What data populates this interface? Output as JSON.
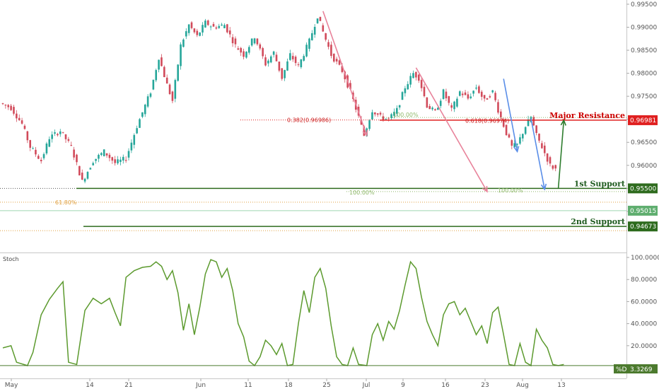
{
  "chart_data": [
    {
      "type": "candlestick",
      "panel": "price",
      "ylim": [
        0.9443,
        0.9953
      ],
      "yticks": [
        "0.95000",
        "0.95500",
        "0.96000",
        "0.96500",
        "0.97000",
        "0.97500",
        "0.98000",
        "0.98500",
        "0.99000",
        "0.99500"
      ],
      "xticks": [
        "May",
        "14",
        "21",
        "Jun",
        "11",
        "18",
        "25",
        "Jul",
        "9",
        "16",
        "23",
        "Aug",
        "13"
      ],
      "price_path": [
        [
          0,
          0.9735
        ],
        [
          4,
          0.9725
        ],
        [
          8,
          0.969
        ],
        [
          11,
          0.964
        ],
        [
          15,
          0.961
        ],
        [
          18,
          0.966
        ],
        [
          22,
          0.9675
        ],
        [
          26,
          0.964
        ],
        [
          30,
          0.9565
        ],
        [
          34,
          0.961
        ],
        [
          38,
          0.963
        ],
        [
          42,
          0.9605
        ],
        [
          46,
          0.9615
        ],
        [
          50,
          0.9685
        ],
        [
          55,
          0.976
        ],
        [
          58,
          0.9835
        ],
        [
          61,
          0.9775
        ],
        [
          63,
          0.974
        ],
        [
          66,
          0.986
        ],
        [
          69,
          0.9905
        ],
        [
          72,
          0.988
        ],
        [
          75,
          0.991
        ],
        [
          78,
          0.99
        ],
        [
          82,
          0.9905
        ],
        [
          86,
          0.986
        ],
        [
          89,
          0.984
        ],
        [
          93,
          0.988
        ],
        [
          97,
          0.982
        ],
        [
          100,
          0.9845
        ],
        [
          103,
          0.979
        ],
        [
          106,
          0.984
        ],
        [
          109,
          0.9815
        ],
        [
          113,
          0.987
        ],
        [
          116,
          0.9925
        ],
        [
          118,
          0.989
        ],
        [
          121,
          0.984
        ],
        [
          125,
          0.9805
        ],
        [
          128,
          0.976
        ],
        [
          131,
          0.9705
        ],
        [
          133,
          0.9665
        ],
        [
          136,
          0.972
        ],
        [
          139,
          0.9705
        ],
        [
          142,
          0.97
        ],
        [
          145,
          0.972
        ],
        [
          148,
          0.977
        ],
        [
          151,
          0.98
        ],
        [
          153,
          0.979
        ],
        [
          156,
          0.973
        ],
        [
          159,
          0.9715
        ],
        [
          162,
          0.976
        ],
        [
          165,
          0.972
        ],
        [
          168,
          0.976
        ],
        [
          171,
          0.9745
        ],
        [
          174,
          0.977
        ],
        [
          177,
          0.974
        ],
        [
          180,
          0.976
        ],
        [
          182,
          0.972
        ],
        [
          185,
          0.967
        ],
        [
          187,
          0.964
        ],
        [
          189,
          0.9645
        ],
        [
          192,
          0.9685
        ],
        [
          194,
          0.9705
        ],
        [
          196,
          0.9665
        ],
        [
          198,
          0.964
        ],
        [
          201,
          0.96
        ],
        [
          203,
          0.9592
        ]
      ],
      "annotations": {
        "major_resistance": {
          "label": "Major Resistance",
          "price": "0.96981",
          "value": 0.96981
        },
        "current_price": {
          "price": "0.95015",
          "value": 0.95015
        },
        "first_support": {
          "label": "1st Support",
          "price": "0.95500",
          "value": 0.955
        },
        "second_support": {
          "label": "2nd Support",
          "price": "0.94673",
          "value": 0.94673
        },
        "fib_left": {
          "label": "0.382(0.96986)",
          "value": 0.96986
        },
        "fib_right": {
          "label": "0.618(0.96974)",
          "value": 0.96974
        },
        "fib_100_top": {
          "label": "100.00%",
          "value": 0.9704
        },
        "fib_100_a": {
          "label": "100.00%",
          "value": 0.9543
        },
        "fib_100_b": {
          "label": "100.00%",
          "value": 0.95445
        },
        "fib_618": {
          "label": "61.80%",
          "value": 0.952
        },
        "arrows": [
          {
            "color": "#e8829a",
            "from": [
              117,
              0.9935
            ],
            "to": [
              133,
              0.9665
            ]
          },
          {
            "color": "#e8829a",
            "from": [
              151,
              0.9812
            ],
            "to": [
              177,
              0.9543
            ]
          },
          {
            "color": "#5a8ee8",
            "from": [
              183,
              0.9788
            ],
            "to": [
              188,
              0.963
            ]
          },
          {
            "color": "#5a8ee8",
            "from": [
              193,
              0.9702
            ],
            "to": [
              198,
              0.9548
            ]
          },
          {
            "color": "#2e7d2e",
            "from": [
              203,
              0.955
            ],
            "to": [
              205,
              0.9698
            ]
          }
        ]
      }
    },
    {
      "type": "line",
      "panel": "stochastic",
      "title": "Stoch",
      "series": [
        {
          "name": "%D",
          "last": "3.3269"
        }
      ],
      "ylim": [
        0,
        100
      ],
      "yticks": [
        "20.0000",
        "40.0000",
        "60.0000",
        "80.0000",
        "100.0000"
      ],
      "values": [
        [
          0,
          18
        ],
        [
          3,
          20
        ],
        [
          5,
          5
        ],
        [
          9,
          2
        ],
        [
          11,
          14
        ],
        [
          14,
          48
        ],
        [
          17,
          62
        ],
        [
          20,
          72
        ],
        [
          22,
          78
        ],
        [
          24,
          5
        ],
        [
          27,
          3
        ],
        [
          30,
          52
        ],
        [
          33,
          63
        ],
        [
          36,
          58
        ],
        [
          39,
          63
        ],
        [
          41,
          50
        ],
        [
          43,
          38
        ],
        [
          45,
          82
        ],
        [
          48,
          88
        ],
        [
          51,
          91
        ],
        [
          54,
          92
        ],
        [
          56,
          96
        ],
        [
          58,
          92
        ],
        [
          60,
          80
        ],
        [
          62,
          88
        ],
        [
          64,
          68
        ],
        [
          66,
          34
        ],
        [
          68,
          58
        ],
        [
          70,
          30
        ],
        [
          72,
          55
        ],
        [
          74,
          85
        ],
        [
          76,
          98
        ],
        [
          78,
          96
        ],
        [
          80,
          82
        ],
        [
          82,
          90
        ],
        [
          84,
          70
        ],
        [
          86,
          40
        ],
        [
          88,
          28
        ],
        [
          90,
          6
        ],
        [
          92,
          2
        ],
        [
          94,
          10
        ],
        [
          96,
          25
        ],
        [
          98,
          20
        ],
        [
          100,
          12
        ],
        [
          102,
          22
        ],
        [
          104,
          2
        ],
        [
          106,
          3
        ],
        [
          108,
          40
        ],
        [
          110,
          70
        ],
        [
          112,
          50
        ],
        [
          114,
          82
        ],
        [
          116,
          90
        ],
        [
          118,
          72
        ],
        [
          120,
          38
        ],
        [
          122,
          10
        ],
        [
          124,
          3
        ],
        [
          126,
          2
        ],
        [
          128,
          18
        ],
        [
          130,
          3
        ],
        [
          133,
          2
        ],
        [
          135,
          30
        ],
        [
          137,
          40
        ],
        [
          139,
          25
        ],
        [
          141,
          42
        ],
        [
          143,
          35
        ],
        [
          145,
          52
        ],
        [
          147,
          75
        ],
        [
          149,
          96
        ],
        [
          151,
          90
        ],
        [
          153,
          64
        ],
        [
          155,
          42
        ],
        [
          157,
          30
        ],
        [
          159,
          20
        ],
        [
          161,
          48
        ],
        [
          163,
          58
        ],
        [
          165,
          60
        ],
        [
          167,
          48
        ],
        [
          169,
          54
        ],
        [
          171,
          42
        ],
        [
          173,
          30
        ],
        [
          175,
          38
        ],
        [
          177,
          22
        ],
        [
          179,
          50
        ],
        [
          181,
          55
        ],
        [
          183,
          30
        ],
        [
          185,
          3
        ],
        [
          187,
          2
        ],
        [
          189,
          22
        ],
        [
          191,
          5
        ],
        [
          193,
          2
        ],
        [
          195,
          35
        ],
        [
          197,
          25
        ],
        [
          199,
          18
        ],
        [
          201,
          3
        ],
        [
          203,
          2
        ],
        [
          205,
          3
        ]
      ]
    }
  ]
}
